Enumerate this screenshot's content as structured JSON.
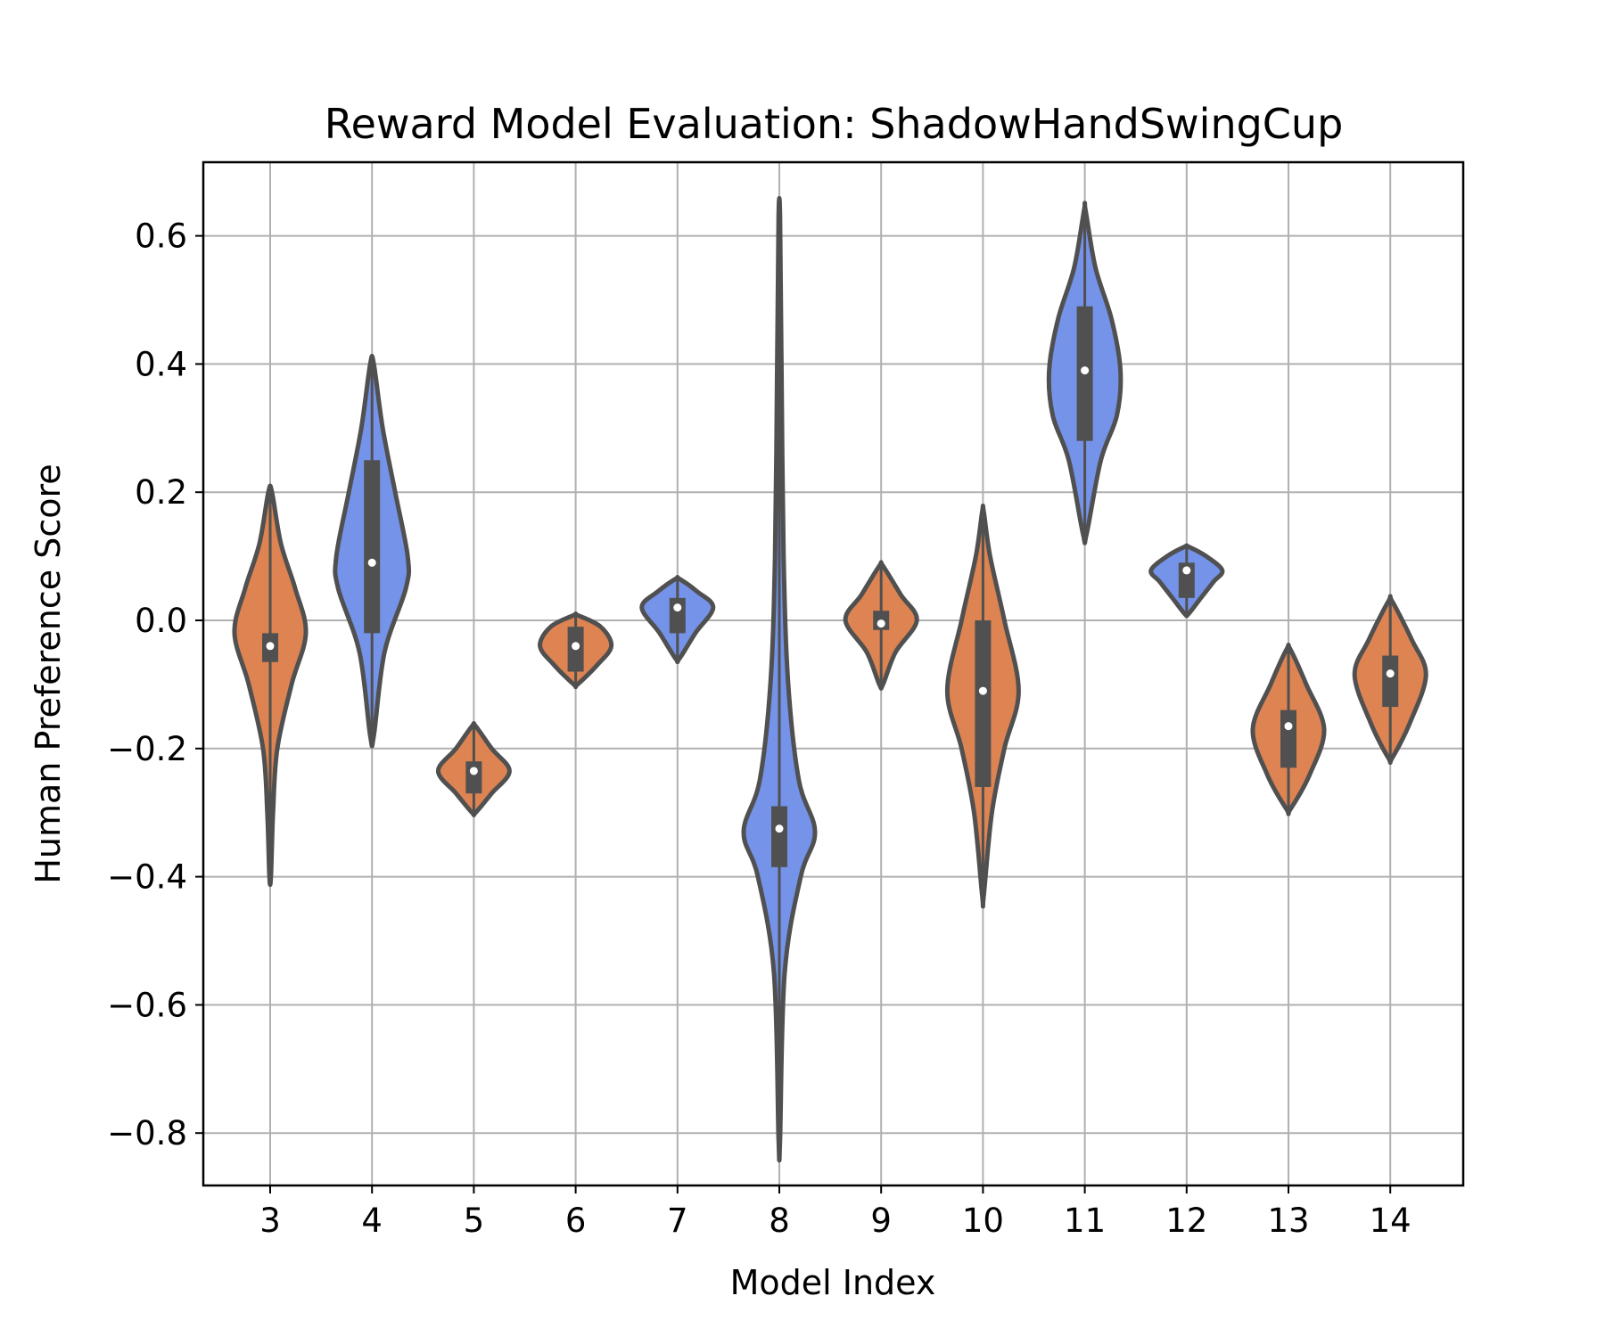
{
  "chart_data": {
    "type": "violin",
    "title": "Reward Model Evaluation: ShadowHandSwingCup",
    "xlabel": "Model Index",
    "ylabel": "Human Preference Score",
    "ylim": [
      -0.88,
      0.71
    ],
    "yticks": [
      -0.8,
      -0.6,
      -0.4,
      -0.2,
      0.0,
      0.2,
      0.4,
      0.6
    ],
    "ytick_labels": [
      "−0.8",
      "−0.6",
      "−0.4",
      "−0.2",
      "0.0",
      "0.2",
      "0.4",
      "0.6"
    ],
    "grid": true,
    "colors": {
      "orange": "#dd8452",
      "blue": "#7493e9",
      "outline": "#505050",
      "grid": "#b0b0b0"
    },
    "series": [
      {
        "category": "3",
        "color": "orange",
        "min": -0.4,
        "max": 0.2,
        "q1": -0.065,
        "median": -0.04,
        "q3": -0.02,
        "peak": -0.02,
        "shape": [
          [
            -0.4,
            0.02
          ],
          [
            -0.3,
            0.08
          ],
          [
            -0.2,
            0.2
          ],
          [
            -0.1,
            0.6
          ],
          [
            -0.02,
            1.0
          ],
          [
            0.05,
            0.7
          ],
          [
            0.12,
            0.3
          ],
          [
            0.2,
            0.05
          ]
        ]
      },
      {
        "category": "4",
        "color": "blue",
        "min": -0.18,
        "max": 0.4,
        "q1": -0.02,
        "median": 0.09,
        "q3": 0.25,
        "peak": 0.08,
        "shape": [
          [
            -0.18,
            0.05
          ],
          [
            -0.05,
            0.35
          ],
          [
            0.05,
            0.95
          ],
          [
            0.1,
            1.0
          ],
          [
            0.2,
            0.65
          ],
          [
            0.3,
            0.3
          ],
          [
            0.4,
            0.05
          ]
        ]
      },
      {
        "category": "5",
        "color": "orange",
        "min": -0.3,
        "max": -0.165,
        "q1": -0.27,
        "median": -0.235,
        "q3": -0.22,
        "peak": -0.235,
        "shape": [
          [
            -0.3,
            0.05
          ],
          [
            -0.27,
            0.5
          ],
          [
            -0.235,
            1.0
          ],
          [
            -0.2,
            0.5
          ],
          [
            -0.165,
            0.05
          ]
        ]
      },
      {
        "category": "6",
        "color": "orange",
        "min": -0.1,
        "max": 0.008,
        "q1": -0.08,
        "median": -0.04,
        "q3": -0.01,
        "peak": -0.04,
        "shape": [
          [
            -0.1,
            0.05
          ],
          [
            -0.07,
            0.6
          ],
          [
            -0.04,
            1.0
          ],
          [
            -0.01,
            0.7
          ],
          [
            0.008,
            0.05
          ]
        ]
      },
      {
        "category": "7",
        "color": "blue",
        "min": -0.06,
        "max": 0.065,
        "q1": -0.02,
        "median": 0.02,
        "q3": 0.035,
        "peak": 0.02,
        "shape": [
          [
            -0.06,
            0.05
          ],
          [
            -0.02,
            0.5
          ],
          [
            0.02,
            1.0
          ],
          [
            0.045,
            0.55
          ],
          [
            0.065,
            0.05
          ]
        ]
      },
      {
        "category": "8",
        "color": "blue",
        "min": -0.81,
        "max": 0.63,
        "q1": -0.385,
        "median": -0.325,
        "q3": -0.29,
        "peak": -0.33,
        "shape": [
          [
            -0.81,
            0.02
          ],
          [
            -0.55,
            0.15
          ],
          [
            -0.4,
            0.6
          ],
          [
            -0.33,
            1.0
          ],
          [
            -0.25,
            0.55
          ],
          [
            -0.1,
            0.25
          ],
          [
            0.1,
            0.12
          ],
          [
            0.4,
            0.06
          ],
          [
            0.63,
            0.02
          ]
        ]
      },
      {
        "category": "9",
        "color": "orange",
        "min": -0.1,
        "max": 0.085,
        "q1": -0.015,
        "median": -0.005,
        "q3": 0.015,
        "peak": 0.0,
        "shape": [
          [
            -0.1,
            0.05
          ],
          [
            -0.05,
            0.4
          ],
          [
            0.0,
            1.0
          ],
          [
            0.04,
            0.55
          ],
          [
            0.085,
            0.05
          ]
        ]
      },
      {
        "category": "10",
        "color": "orange",
        "min": -0.43,
        "max": 0.17,
        "q1": -0.26,
        "median": -0.11,
        "q3": 0.0,
        "peak": -0.11,
        "shape": [
          [
            -0.43,
            0.02
          ],
          [
            -0.3,
            0.25
          ],
          [
            -0.2,
            0.6
          ],
          [
            -0.11,
            1.0
          ],
          [
            0.0,
            0.6
          ],
          [
            0.1,
            0.2
          ],
          [
            0.17,
            0.02
          ]
        ]
      },
      {
        "category": "11",
        "color": "blue",
        "min": 0.135,
        "max": 0.64,
        "q1": 0.28,
        "median": 0.39,
        "q3": 0.49,
        "peak": 0.39,
        "shape": [
          [
            0.135,
            0.05
          ],
          [
            0.25,
            0.45
          ],
          [
            0.32,
            0.9
          ],
          [
            0.39,
            1.0
          ],
          [
            0.47,
            0.75
          ],
          [
            0.55,
            0.3
          ],
          [
            0.64,
            0.02
          ]
        ]
      },
      {
        "category": "12",
        "color": "blue",
        "min": 0.01,
        "max": 0.115,
        "q1": 0.035,
        "median": 0.078,
        "q3": 0.09,
        "peak": 0.078,
        "shape": [
          [
            0.01,
            0.05
          ],
          [
            0.035,
            0.4
          ],
          [
            0.06,
            0.75
          ],
          [
            0.078,
            1.0
          ],
          [
            0.1,
            0.55
          ],
          [
            0.115,
            0.05
          ]
        ]
      },
      {
        "category": "13",
        "color": "orange",
        "min": -0.295,
        "max": -0.045,
        "q1": -0.23,
        "median": -0.165,
        "q3": -0.14,
        "peak": -0.17,
        "shape": [
          [
            -0.295,
            0.05
          ],
          [
            -0.24,
            0.6
          ],
          [
            -0.17,
            1.0
          ],
          [
            -0.1,
            0.5
          ],
          [
            -0.045,
            0.05
          ]
        ]
      },
      {
        "category": "14",
        "color": "orange",
        "min": -0.215,
        "max": 0.03,
        "q1": -0.135,
        "median": -0.083,
        "q3": -0.055,
        "peak": -0.085,
        "shape": [
          [
            -0.215,
            0.05
          ],
          [
            -0.16,
            0.55
          ],
          [
            -0.085,
            1.0
          ],
          [
            -0.03,
            0.6
          ],
          [
            0.03,
            0.05
          ]
        ]
      }
    ]
  }
}
